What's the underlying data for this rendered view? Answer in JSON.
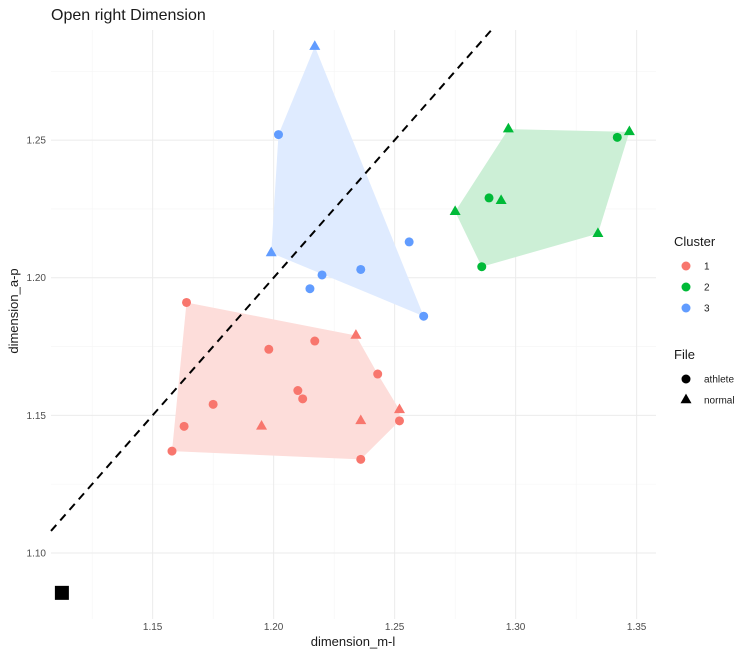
{
  "chart_data": {
    "type": "scatter",
    "title": "Open right Dimension",
    "xlabel": "dimension_m-l",
    "ylabel": "dimension_a-p",
    "xlim": [
      1.108,
      1.358
    ],
    "ylim": [
      1.076,
      1.29
    ],
    "x_ticks": [
      1.15,
      1.2,
      1.25,
      1.3,
      1.35
    ],
    "x_tick_labels": [
      "1.15",
      "1.20",
      "1.25",
      "1.30",
      "1.35"
    ],
    "y_ticks": [
      1.1,
      1.15,
      1.2,
      1.25
    ],
    "y_tick_labels": [
      "1.10",
      "1.15",
      "1.20",
      "1.25"
    ],
    "grid": true,
    "reference_line": {
      "style": "dashed",
      "color": "#000000",
      "slope": 1,
      "intercept": 0
    },
    "marker": {
      "shape": "square",
      "x": 1.1125,
      "y": 1.0855,
      "color": "#000000"
    },
    "legend": {
      "placement": "right",
      "cluster_title": "Cluster",
      "clusters": [
        {
          "label": "1",
          "color": "#F8766D",
          "fill": "#FDDDDA"
        },
        {
          "label": "2",
          "color": "#00BA38",
          "fill": "#CCEFD6"
        },
        {
          "label": "3",
          "color": "#619CFF",
          "fill": "#DFEBFF"
        }
      ],
      "file_title": "File",
      "files": [
        {
          "label": "athlete",
          "shape": "circle"
        },
        {
          "label": "normal",
          "shape": "triangle"
        }
      ]
    },
    "series": [
      {
        "cluster": "1",
        "points": [
          {
            "x": 1.164,
            "y": 1.191,
            "file": "athlete"
          },
          {
            "x": 1.198,
            "y": 1.174,
            "file": "athlete"
          },
          {
            "x": 1.217,
            "y": 1.177,
            "file": "athlete"
          },
          {
            "x": 1.234,
            "y": 1.179,
            "file": "normal"
          },
          {
            "x": 1.243,
            "y": 1.165,
            "file": "athlete"
          },
          {
            "x": 1.21,
            "y": 1.159,
            "file": "athlete"
          },
          {
            "x": 1.212,
            "y": 1.156,
            "file": "athlete"
          },
          {
            "x": 1.175,
            "y": 1.154,
            "file": "athlete"
          },
          {
            "x": 1.163,
            "y": 1.146,
            "file": "athlete"
          },
          {
            "x": 1.158,
            "y": 1.137,
            "file": "athlete"
          },
          {
            "x": 1.195,
            "y": 1.146,
            "file": "normal"
          },
          {
            "x": 1.236,
            "y": 1.148,
            "file": "normal"
          },
          {
            "x": 1.252,
            "y": 1.152,
            "file": "normal"
          },
          {
            "x": 1.252,
            "y": 1.148,
            "file": "athlete"
          },
          {
            "x": 1.236,
            "y": 1.134,
            "file": "athlete"
          }
        ],
        "hull": [
          [
            1.164,
            1.191
          ],
          [
            1.234,
            1.179
          ],
          [
            1.243,
            1.165
          ],
          [
            1.252,
            1.152
          ],
          [
            1.252,
            1.148
          ],
          [
            1.236,
            1.134
          ],
          [
            1.158,
            1.137
          ]
        ]
      },
      {
        "cluster": "2",
        "points": [
          {
            "x": 1.297,
            "y": 1.254,
            "file": "normal"
          },
          {
            "x": 1.347,
            "y": 1.253,
            "file": "normal"
          },
          {
            "x": 1.342,
            "y": 1.251,
            "file": "athlete"
          },
          {
            "x": 1.289,
            "y": 1.229,
            "file": "athlete"
          },
          {
            "x": 1.294,
            "y": 1.228,
            "file": "normal"
          },
          {
            "x": 1.275,
            "y": 1.224,
            "file": "normal"
          },
          {
            "x": 1.334,
            "y": 1.216,
            "file": "normal"
          },
          {
            "x": 1.286,
            "y": 1.204,
            "file": "athlete"
          }
        ],
        "hull": [
          [
            1.297,
            1.254
          ],
          [
            1.347,
            1.253
          ],
          [
            1.334,
            1.216
          ],
          [
            1.286,
            1.204
          ],
          [
            1.275,
            1.224
          ]
        ]
      },
      {
        "cluster": "3",
        "points": [
          {
            "x": 1.217,
            "y": 1.284,
            "file": "normal"
          },
          {
            "x": 1.202,
            "y": 1.252,
            "file": "athlete"
          },
          {
            "x": 1.256,
            "y": 1.213,
            "file": "athlete"
          },
          {
            "x": 1.199,
            "y": 1.209,
            "file": "normal"
          },
          {
            "x": 1.236,
            "y": 1.203,
            "file": "athlete"
          },
          {
            "x": 1.22,
            "y": 1.201,
            "file": "athlete"
          },
          {
            "x": 1.215,
            "y": 1.196,
            "file": "athlete"
          },
          {
            "x": 1.262,
            "y": 1.186,
            "file": "athlete"
          }
        ],
        "hull": [
          [
            1.217,
            1.284
          ],
          [
            1.262,
            1.186
          ],
          [
            1.199,
            1.209
          ],
          [
            1.202,
            1.252
          ]
        ]
      }
    ]
  }
}
